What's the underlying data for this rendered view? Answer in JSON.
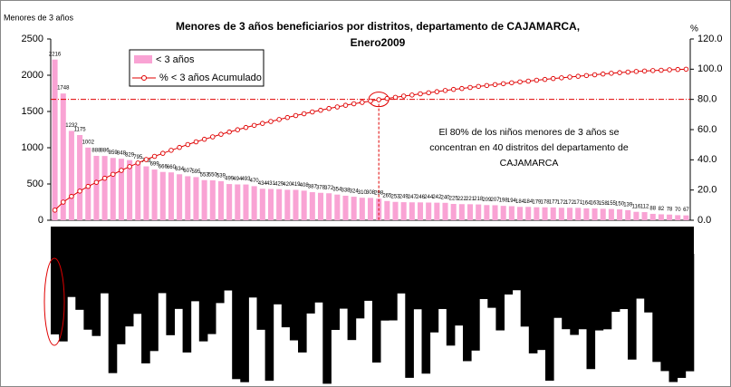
{
  "chart_data": {
    "type": "pareto",
    "title": [
      "Menores de 3 años beneficiarios por distritos, departamento de CAJAMARCA,",
      "Enero2009"
    ],
    "y_label": "Menores de 3 años",
    "y2_label": "%",
    "annotation": [
      "El 80% de los niños menores de 3 años se",
      "concentran en 40 distritos del departamento de",
      "CAJAMARCA"
    ],
    "categories": [
      null,
      null,
      null,
      null,
      null,
      null,
      null,
      null,
      null,
      null,
      null,
      null,
      null,
      null,
      null,
      null,
      null,
      null,
      null,
      null,
      null,
      null,
      null,
      null,
      null,
      null,
      null,
      null,
      null,
      null,
      null,
      null,
      null,
      null,
      null,
      null,
      null,
      null,
      null,
      null,
      null,
      null,
      null,
      null,
      null,
      null,
      null,
      null,
      null,
      null,
      null,
      null,
      null,
      null,
      null,
      null,
      null,
      null,
      null,
      null,
      null,
      null,
      null,
      null,
      null,
      null,
      null,
      null,
      null,
      null,
      null,
      null,
      null,
      null,
      null,
      null,
      null
    ],
    "series": [
      {
        "name": "< 3 años",
        "color": "#f9a3d4",
        "axis": "y",
        "values": [
          2216,
          1748,
          1232,
          1175,
          1002,
          888,
          886,
          859,
          848,
          829,
          795,
          743,
          699,
          666,
          660,
          634,
          607,
          595,
          553,
          550,
          539,
          499,
          494,
          493,
          470,
          434,
          431,
          429,
          420,
          419,
          408,
          387,
          378,
          372,
          354,
          338,
          324,
          310,
          308,
          298,
          265,
          253,
          249,
          247,
          246,
          244,
          242,
          240,
          225,
          222,
          221,
          218,
          209,
          207,
          198,
          194,
          184,
          184,
          179,
          178,
          177,
          172,
          172,
          171,
          164,
          163,
          158,
          155,
          150,
          139,
          116,
          112,
          88,
          82,
          78,
          70,
          67
        ]
      },
      {
        "name": "% < 3 años Acumulado",
        "color": "#e00000",
        "axis": "y2",
        "values": [
          6.7,
          12.0,
          15.8,
          19.3,
          22.4,
          25.1,
          27.8,
          30.4,
          33.0,
          35.5,
          37.9,
          40.2,
          42.3,
          44.3,
          46.3,
          48.2,
          50.1,
          51.9,
          53.6,
          55.2,
          56.9,
          58.4,
          59.9,
          61.4,
          62.8,
          64.1,
          65.4,
          66.7,
          68.0,
          69.3,
          70.5,
          71.7,
          72.8,
          74.0,
          75.0,
          76.1,
          77.1,
          78.0,
          78.9,
          79.8,
          80.6,
          81.4,
          82.2,
          82.9,
          83.7,
          84.4,
          85.1,
          85.9,
          86.6,
          87.2,
          87.9,
          88.6,
          89.2,
          89.8,
          90.4,
          91.0,
          91.6,
          92.1,
          92.7,
          93.2,
          93.8,
          94.3,
          94.8,
          95.3,
          95.8,
          96.3,
          96.8,
          97.3,
          97.7,
          98.1,
          98.5,
          98.8,
          99.1,
          99.3,
          99.6,
          99.8,
          100.0
        ]
      }
    ],
    "ylim": [
      0,
      2500
    ],
    "yticks": [
      0,
      500,
      1000,
      1500,
      2000,
      2500
    ],
    "y2lim": [
      0,
      120
    ],
    "y2ticks": [
      {
        "value": 0,
        "label": "0.0"
      },
      {
        "value": 20,
        "label": "20.0"
      },
      {
        "value": 40,
        "label": "40.0"
      },
      {
        "value": 60,
        "label": "60.0"
      },
      {
        "value": 80,
        "label": "80.0"
      },
      {
        "value": 100,
        "label": "100.0"
      },
      {
        "value": 120,
        "label": "120.0"
      }
    ],
    "threshold": 80,
    "threshold_index": 39,
    "legend": "top-left"
  }
}
